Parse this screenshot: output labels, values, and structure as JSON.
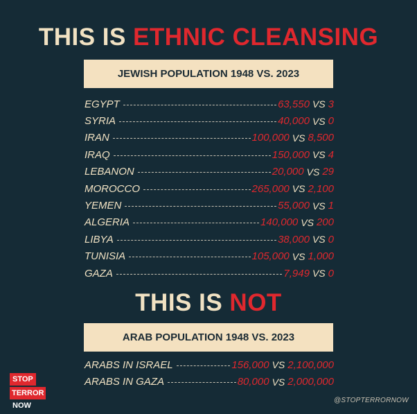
{
  "headline_top": {
    "part1": "THIS IS ",
    "part2": "ETHNIC CLEANSING"
  },
  "box_top": "JEWISH POPULATION 1948 VS. 2023",
  "jewish_rows": [
    {
      "country": "EGYPT",
      "v1948": "63,550",
      "v2023": "3"
    },
    {
      "country": "SYRIA",
      "v1948": "40,000",
      "v2023": "0"
    },
    {
      "country": "IRAN",
      "v1948": "100,000",
      "v2023": "8,500"
    },
    {
      "country": "IRAQ",
      "v1948": "150,000",
      "v2023": "4"
    },
    {
      "country": "LEBANON",
      "v1948": "20,000",
      "v2023": "29"
    },
    {
      "country": "MOROCCO",
      "v1948": "265,000",
      "v2023": "2,100"
    },
    {
      "country": "YEMEN",
      "v1948": "55,000",
      "v2023": "1"
    },
    {
      "country": "ALGERIA",
      "v1948": "140,000",
      "v2023": "200"
    },
    {
      "country": "LIBYA",
      "v1948": "38,000",
      "v2023": "0"
    },
    {
      "country": "TUNISIA",
      "v1948": "105,000",
      "v2023": "1,000"
    },
    {
      "country": "GAZA",
      "v1948": "7,949",
      "v2023": "0"
    }
  ],
  "vs_label": "VS",
  "headline_bottom": {
    "part1": "THIS IS ",
    "part2": "NOT"
  },
  "box_bottom": "ARAB POPULATION 1948 VS. 2023",
  "arab_rows": [
    {
      "country": "ARABS IN ISRAEL",
      "v1948": "156,000",
      "v2023": "2,100,000"
    },
    {
      "country": "ARABS IN GAZA",
      "v1948": "80,000",
      "v2023": "2,000,000"
    }
  ],
  "logo": {
    "line1": "STOP",
    "line2": "TERROR",
    "line3": "NOW"
  },
  "handle": "@STOPTERRORNOW",
  "colors": {
    "background": "#152b36",
    "accent_red": "#e0282e",
    "cream": "#f4e1c0"
  }
}
